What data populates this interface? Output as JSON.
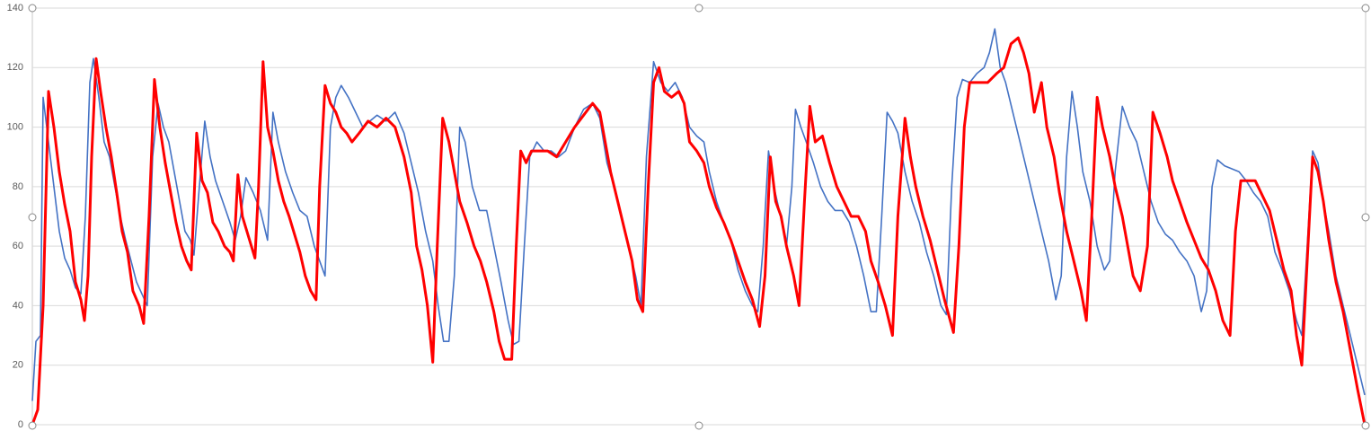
{
  "chart_data": {
    "type": "line",
    "xlim": [
      36,
      1521
    ],
    "ylim": [
      0,
      140
    ],
    "yticks": [
      0,
      20,
      40,
      60,
      80,
      100,
      120,
      140
    ],
    "grid": true,
    "series": [
      {
        "color": "#ff0000",
        "x": [
          36,
          42,
          48,
          54,
          60,
          66,
          72,
          78,
          84,
          90,
          94,
          98,
          102,
          107,
          112,
          118,
          124,
          130,
          136,
          142,
          148,
          155,
          160,
          166,
          172,
          178,
          184,
          190,
          196,
          202,
          208,
          213,
          219,
          225,
          231,
          237,
          243,
          250,
          256,
          260,
          265,
          270,
          278,
          284,
          288,
          293,
          298,
          304,
          310,
          316,
          322,
          328,
          334,
          340,
          346,
          352,
          356,
          362,
          368,
          374,
          380,
          386,
          392,
          400,
          410,
          420,
          430,
          440,
          450,
          458,
          464,
          470,
          476,
          482,
          487,
          493,
          500,
          506,
          512,
          520,
          528,
          535,
          542,
          550,
          556,
          562,
          570,
          575,
          580,
          586,
          592,
          600,
          610,
          620,
          630,
          640,
          650,
          660,
          668,
          674,
          680,
          688,
          696,
          704,
          710,
          716,
          722,
          728,
          734,
          740,
          748,
          756,
          762,
          768,
          776,
          784,
          790,
          798,
          806,
          814,
          822,
          830,
          838,
          846,
          852,
          858,
          864,
          870,
          876,
          884,
          890,
          896,
          902,
          908,
          916,
          924,
          932,
          940,
          948,
          956,
          964,
          970,
          978,
          986,
          994,
          1000,
          1008,
          1014,
          1020,
          1028,
          1036,
          1044,
          1052,
          1062,
          1068,
          1074,
          1080,
          1090,
          1100,
          1110,
          1118,
          1126,
          1134,
          1140,
          1146,
          1152,
          1160,
          1166,
          1174,
          1180,
          1188,
          1196,
          1204,
          1210,
          1216,
          1222,
          1228,
          1236,
          1242,
          1250,
          1256,
          1262,
          1270,
          1278,
          1284,
          1292,
          1300,
          1306,
          1314,
          1322,
          1330,
          1338,
          1346,
          1354,
          1362,
          1370,
          1376,
          1382,
          1390,
          1398,
          1406,
          1414,
          1422,
          1430,
          1438,
          1444,
          1450,
          1456,
          1462,
          1468,
          1474,
          1480,
          1488,
          1496,
          1504,
          1512,
          1520
        ],
        "values": [
          0,
          5,
          40,
          112,
          100,
          85,
          74,
          65,
          48,
          42,
          35,
          50,
          90,
          123,
          112,
          100,
          90,
          78,
          65,
          58,
          45,
          40,
          34,
          70,
          116,
          100,
          88,
          78,
          68,
          60,
          55,
          52,
          98,
          82,
          78,
          68,
          65,
          60,
          58,
          55,
          84,
          70,
          62,
          56,
          80,
          122,
          100,
          92,
          82,
          75,
          70,
          64,
          58,
          50,
          45,
          42,
          80,
          114,
          108,
          105,
          100,
          98,
          95,
          98,
          102,
          100,
          103,
          100,
          90,
          78,
          60,
          52,
          40,
          21,
          60,
          103,
          95,
          85,
          75,
          68,
          60,
          55,
          48,
          38,
          28,
          22,
          22,
          60,
          92,
          88,
          92,
          92,
          92,
          90,
          95,
          100,
          104,
          108,
          105,
          95,
          85,
          75,
          65,
          55,
          42,
          38,
          80,
          115,
          120,
          112,
          110,
          112,
          108,
          95,
          92,
          88,
          80,
          73,
          68,
          62,
          55,
          48,
          42,
          33,
          50,
          90,
          75,
          70,
          60,
          50,
          40,
          75,
          107,
          95,
          97,
          88,
          80,
          75,
          70,
          70,
          65,
          55,
          48,
          40,
          30,
          70,
          103,
          90,
          80,
          70,
          62,
          52,
          42,
          31,
          60,
          100,
          115,
          115,
          115,
          118,
          120,
          128,
          130,
          125,
          118,
          105,
          115,
          100,
          90,
          78,
          65,
          55,
          45,
          35,
          70,
          110,
          100,
          90,
          80,
          70,
          60,
          50,
          45,
          60,
          105,
          98,
          90,
          82,
          75,
          68,
          62,
          56,
          52,
          45,
          35,
          30,
          65,
          82,
          82,
          82,
          77,
          72,
          62,
          52,
          45,
          30,
          20,
          55,
          90,
          85,
          75,
          62,
          48,
          38,
          25,
          12,
          0
        ]
      },
      {
        "color": "#4472c4",
        "x": [
          36,
          40,
          45,
          48,
          54,
          60,
          66,
          72,
          78,
          84,
          90,
          95,
          100,
          104,
          110,
          116,
          122,
          128,
          134,
          140,
          146,
          152,
          158,
          164,
          170,
          176,
          182,
          188,
          194,
          200,
          206,
          212,
          216,
          222,
          228,
          234,
          240,
          248,
          256,
          262,
          268,
          274,
          282,
          290,
          298,
          304,
          310,
          318,
          326,
          334,
          342,
          350,
          356,
          362,
          368,
          374,
          380,
          388,
          396,
          404,
          412,
          420,
          430,
          440,
          450,
          458,
          466,
          474,
          482,
          488,
          494,
          500,
          506,
          512,
          518,
          526,
          534,
          542,
          550,
          558,
          566,
          572,
          578,
          584,
          590,
          598,
          606,
          614,
          622,
          630,
          640,
          650,
          660,
          668,
          676,
          684,
          692,
          700,
          708,
          714,
          720,
          728,
          736,
          744,
          752,
          760,
          768,
          776,
          784,
          790,
          798,
          806,
          814,
          822,
          830,
          838,
          844,
          850,
          856,
          862,
          868,
          876,
          882,
          886,
          892,
          898,
          906,
          914,
          922,
          930,
          938,
          946,
          954,
          962,
          970,
          976,
          982,
          988,
          994,
          1000,
          1008,
          1016,
          1024,
          1032,
          1040,
          1048,
          1054,
          1060,
          1066,
          1072,
          1080,
          1088,
          1096,
          1102,
          1108,
          1114,
          1120,
          1128,
          1136,
          1144,
          1152,
          1160,
          1168,
          1176,
          1182,
          1188,
          1194,
          1200,
          1206,
          1214,
          1222,
          1230,
          1236,
          1242,
          1250,
          1258,
          1266,
          1274,
          1282,
          1290,
          1298,
          1306,
          1314,
          1322,
          1330,
          1338,
          1344,
          1350,
          1356,
          1364,
          1372,
          1380,
          1388,
          1396,
          1404,
          1412,
          1420,
          1428,
          1436,
          1444,
          1450,
          1456,
          1462,
          1468,
          1474,
          1480,
          1488,
          1496,
          1504,
          1512,
          1520
        ],
        "values": [
          8,
          28,
          30,
          110,
          95,
          80,
          65,
          56,
          52,
          46,
          44,
          70,
          115,
          123,
          110,
          95,
          90,
          80,
          70,
          62,
          55,
          48,
          44,
          40,
          90,
          108,
          100,
          95,
          85,
          75,
          65,
          62,
          57,
          80,
          102,
          90,
          82,
          75,
          68,
          62,
          70,
          83,
          78,
          72,
          62,
          105,
          95,
          85,
          78,
          72,
          70,
          60,
          55,
          50,
          100,
          110,
          114,
          110,
          105,
          100,
          102,
          104,
          102,
          105,
          98,
          88,
          78,
          65,
          55,
          40,
          28,
          28,
          50,
          100,
          95,
          80,
          72,
          72,
          60,
          48,
          35,
          27,
          28,
          60,
          90,
          95,
          92,
          92,
          90,
          92,
          100,
          106,
          108,
          103,
          88,
          80,
          70,
          60,
          50,
          40,
          90,
          122,
          115,
          112,
          115,
          110,
          100,
          97,
          95,
          85,
          75,
          68,
          62,
          52,
          45,
          40,
          38,
          60,
          92,
          80,
          72,
          60,
          80,
          106,
          100,
          95,
          88,
          80,
          75,
          72,
          72,
          68,
          60,
          50,
          38,
          38,
          70,
          105,
          102,
          98,
          85,
          75,
          68,
          58,
          50,
          40,
          37,
          80,
          110,
          116,
          115,
          118,
          120,
          125,
          133,
          120,
          115,
          105,
          95,
          85,
          75,
          65,
          55,
          42,
          50,
          90,
          112,
          100,
          85,
          75,
          60,
          52,
          55,
          85,
          107,
          100,
          95,
          85,
          75,
          68,
          64,
          62,
          58,
          55,
          50,
          38,
          45,
          80,
          89,
          87,
          86,
          85,
          82,
          78,
          75,
          70,
          58,
          52,
          45,
          35,
          30,
          60,
          92,
          88,
          75,
          65,
          50,
          40,
          30,
          20,
          10
        ]
      }
    ]
  }
}
